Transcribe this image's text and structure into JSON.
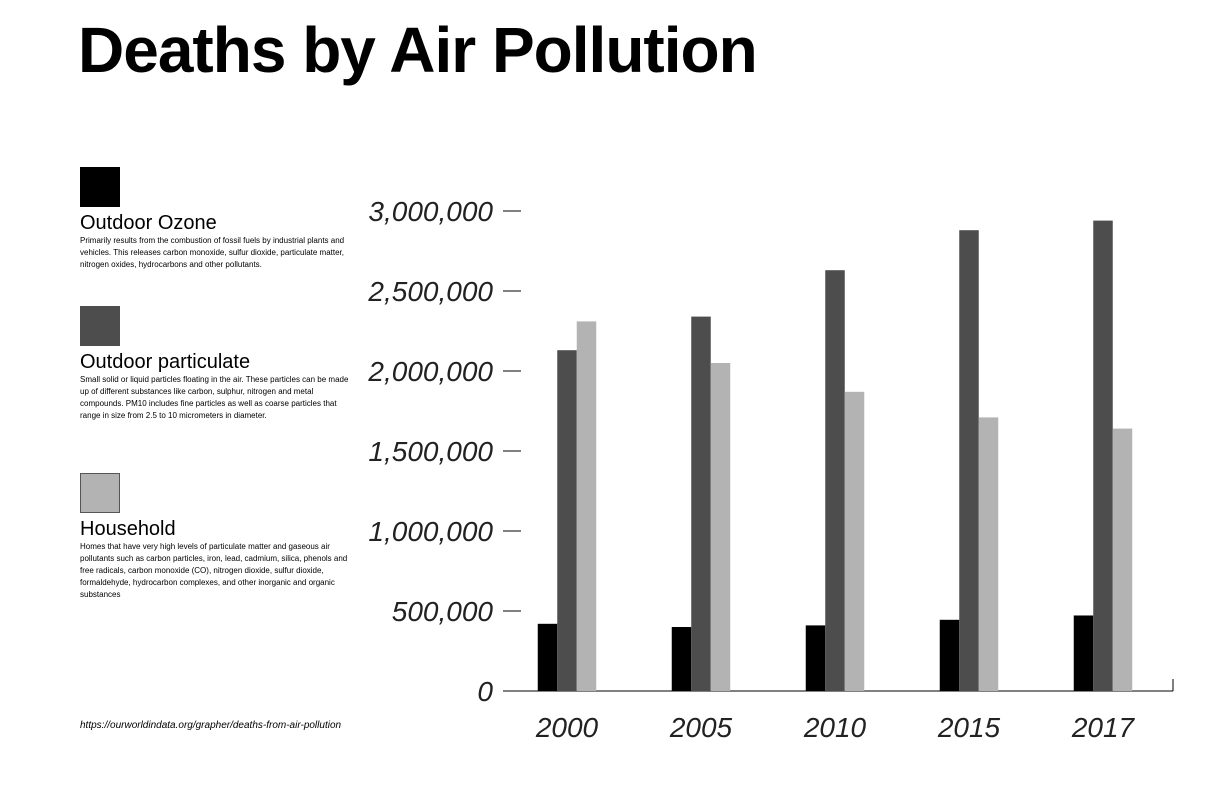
{
  "title": "Deaths by Air Pollution",
  "source": "https://ourworldindata.org/grapher/deaths-from-air-pollution",
  "legend": [
    {
      "name": "Outdoor Ozone",
      "color": "#000000",
      "description": "Primarily results from the combustion of fossil fuels by industrial plants and vehicles. This releases carbon monoxide, sulfur dioxide, particulate matter, nitrogen oxides, hydrocarbons and other pollutants."
    },
    {
      "name": "Outdoor particulate",
      "color": "#4d4d4d",
      "description": "Small solid or liquid particles floating in the air. These particles can be made up of different substances like carbon, sulphur, nitrogen and metal compounds. PM10 includes fine particles as well as coarse particles that range in size from 2.5 to 10 micrometers in diameter."
    },
    {
      "name": "Household",
      "color": "#b3b3b3",
      "description": "Homes that have very high levels of particulate matter and gaseous air pollutants such as carbon particles, iron, lead, cadmium, silica, phenols and free radicals, carbon monoxide (CO), nitrogen dioxide, sulfur dioxide, formaldehyde, hydrocarbon complexes, and other inorganic and organic substances"
    }
  ],
  "chart_data": {
    "type": "bar",
    "title": "Deaths by Air Pollution",
    "xlabel": "",
    "ylabel": "",
    "categories": [
      "2000",
      "2005",
      "2010",
      "2015",
      "2017"
    ],
    "series": [
      {
        "name": "Outdoor Ozone",
        "color": "#000000",
        "values": [
          420000,
          400000,
          410000,
          445000,
          472000
        ]
      },
      {
        "name": "Outdoor particulate",
        "color": "#4d4d4d",
        "values": [
          2130000,
          2340000,
          2630000,
          2880000,
          2940000
        ]
      },
      {
        "name": "Household",
        "color": "#b3b3b3",
        "values": [
          2310000,
          2050000,
          1870000,
          1710000,
          1640000
        ]
      }
    ],
    "ylim": [
      0,
      3000000
    ],
    "yticks": [
      0,
      500000,
      1000000,
      1500000,
      2000000,
      2500000,
      3000000
    ],
    "ytick_labels": [
      "0",
      "500,000",
      "1,000,000",
      "1,500,000",
      "2,000,000",
      "2,500,000",
      "3,000,000"
    ],
    "grid": false,
    "legend_position": "left"
  }
}
